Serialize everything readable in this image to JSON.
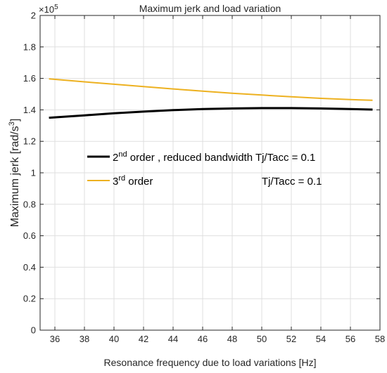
{
  "chart_data": {
    "type": "line",
    "title": "Maximum jerk and load variation",
    "xlabel": "Resonance frequency due to load variations [Hz]",
    "ylabel": {
      "main": "Maximum jerk [rad/s",
      "sup": "3",
      "end": "]"
    },
    "y_exponent": {
      "base": "×10",
      "power": "5"
    },
    "xlim": [
      35,
      58
    ],
    "ylim": [
      0,
      2
    ],
    "y_scale_factor": 100000,
    "xticks": [
      36,
      38,
      40,
      42,
      44,
      46,
      48,
      50,
      52,
      54,
      56,
      58
    ],
    "yticks": [
      0,
      0.2,
      0.4,
      0.6,
      0.8,
      1,
      1.2,
      1.4,
      1.6,
      1.8,
      2
    ],
    "grid": true,
    "legend_position": "center-left",
    "series": [
      {
        "name": "2nd order , reduced bandwidth Tj/Tacc = 0.1",
        "legend": {
          "pre": "2",
          "sup": "nd",
          "post": " order , reduced bandwidth Tj/Tacc = 0.1"
        },
        "color": "#000000",
        "x": [
          35.6,
          38,
          40,
          42,
          44,
          46,
          48,
          50,
          52,
          54,
          56,
          57.5
        ],
        "y": [
          1.35,
          1.365,
          1.378,
          1.389,
          1.398,
          1.405,
          1.409,
          1.411,
          1.411,
          1.409,
          1.405,
          1.402
        ]
      },
      {
        "name": "3rd order Tj/Tacc = 0.1",
        "legend": {
          "pre": "3",
          "sup": "rd",
          "post": " order",
          "right": "Tj/Tacc = 0.1"
        },
        "color": "#edb120",
        "x": [
          35.6,
          38,
          40,
          42,
          44,
          46,
          48,
          50,
          52,
          54,
          56,
          57.5
        ],
        "y": [
          1.597,
          1.578,
          1.563,
          1.548,
          1.533,
          1.519,
          1.506,
          1.494,
          1.483,
          1.473,
          1.465,
          1.461
        ]
      }
    ]
  }
}
